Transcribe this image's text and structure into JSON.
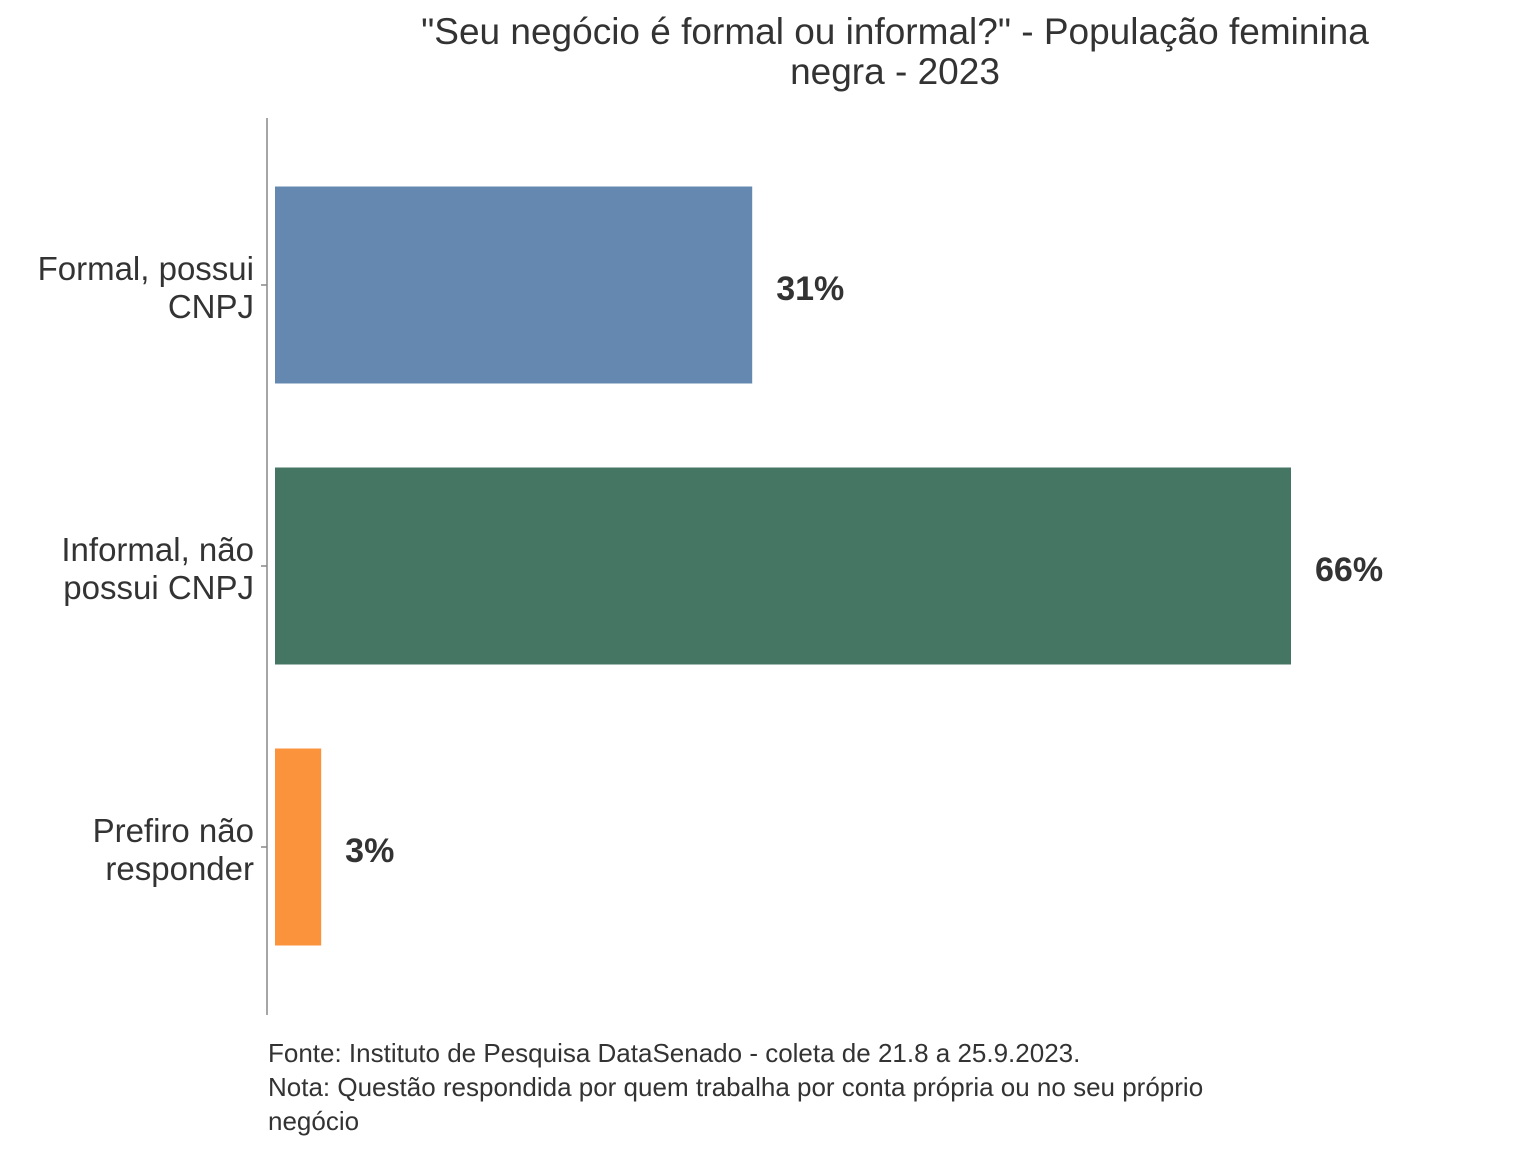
{
  "chart_data": {
    "type": "bar",
    "orientation": "horizontal",
    "title_lines": [
      "\"Seu negócio é formal ou informal?\" - População feminina",
      "negra - 2023"
    ],
    "categories": [
      [
        "Formal, possui",
        "CNPJ"
      ],
      [
        "Informal, não",
        "possui CNPJ"
      ],
      [
        "Prefiro não",
        "responder"
      ]
    ],
    "values": [
      31,
      66,
      3
    ],
    "value_labels": [
      "31%",
      "66%",
      "3%"
    ],
    "colors": [
      "#6588b0",
      "#457664",
      "#fb923c"
    ],
    "xlim": [
      0,
      100
    ],
    "grid": false,
    "legend": "none"
  },
  "caption": {
    "source": "Fonte: Instituto de Pesquisa DataSenado - coleta de 21.8 a 25.9.2023.",
    "note_line1": "Nota: Questão respondida por quem trabalha por conta própria ou no seu próprio",
    "note_line2": "negócio"
  }
}
